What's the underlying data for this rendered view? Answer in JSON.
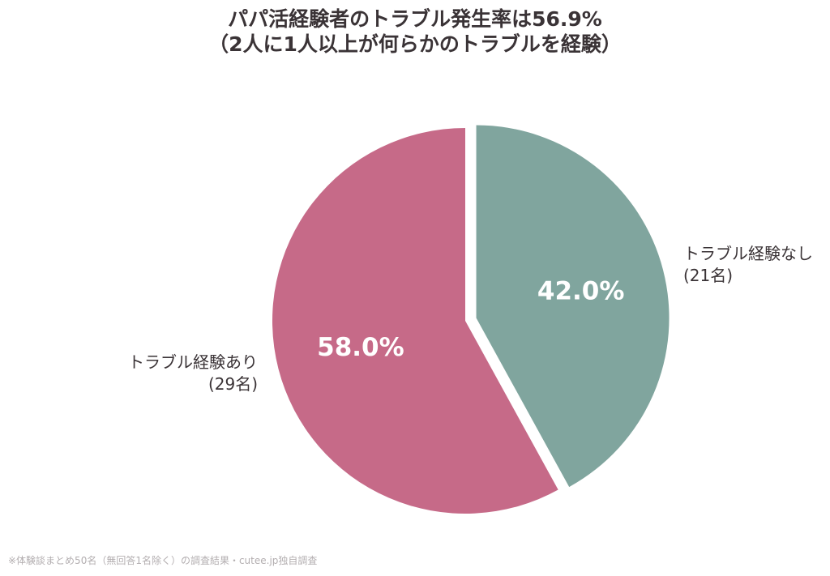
{
  "chart_data": {
    "type": "pie",
    "title_lines": [
      "パパ活経験者のトラブル発生率は56.9%",
      "（2人に1人以上が何らかのトラブルを経験）"
    ],
    "slices": [
      {
        "label": "トラブル経験なし",
        "count_label": "(21名)",
        "value": 42.0,
        "value_label": "42.0%",
        "color": "#80a59e",
        "exploded": true
      },
      {
        "label": "トラブル経験あり",
        "count_label": "(29名)",
        "value": 58.0,
        "value_label": "58.0%",
        "color": "#c66a88",
        "exploded": false
      }
    ],
    "start_angle_deg": 0,
    "direction": "clockwise",
    "legend": "none"
  },
  "footnote": "※体験談まとめ50名（無回答1名除く）の調査結果・cutee.jp独自調査"
}
